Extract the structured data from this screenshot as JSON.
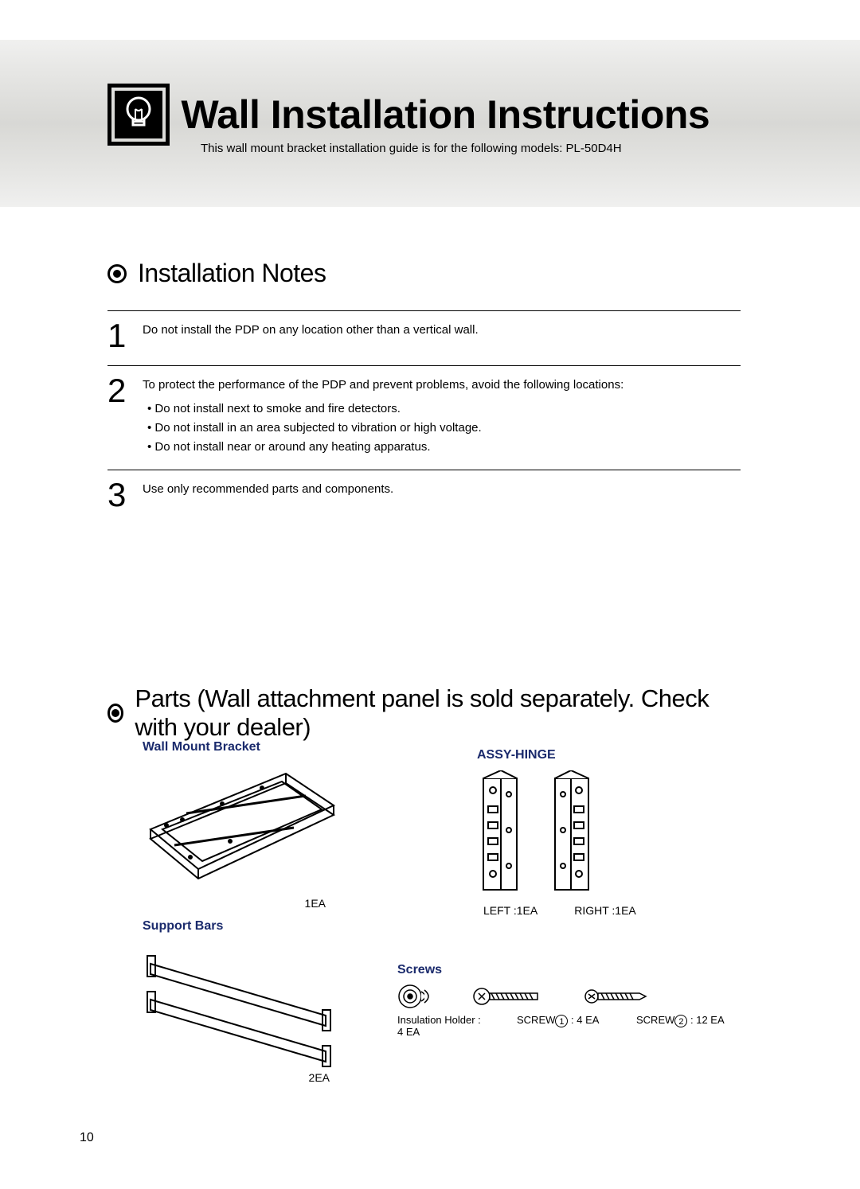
{
  "page_number": "10",
  "header": {
    "title": "Wall Installation Instructions",
    "subtitle": "This wall mount bracket installation guide is for the following models: PL-50D4H"
  },
  "sections": {
    "notes": {
      "title": "Installation Notes",
      "items": [
        {
          "num": "1",
          "text": "Do not install the PDP on any location other than a vertical wall.",
          "bullets": []
        },
        {
          "num": "2",
          "text": "To protect the performance of the PDP and prevent problems, avoid the following locations:",
          "bullets": [
            "Do not install next to smoke and fire detectors.",
            "Do not install in an area subjected to vibration or high voltage.",
            "Do not install near or around any heating apparatus."
          ]
        },
        {
          "num": "3",
          "text": "Use only recommended parts and components.",
          "bullets": []
        }
      ]
    },
    "parts": {
      "title": "Parts (Wall attachment panel is sold separately. Check with your dealer)",
      "wall_bracket": {
        "label": "Wall Mount Bracket",
        "qty": "1EA"
      },
      "support_bars": {
        "label": "Support Bars",
        "qty": "2EA"
      },
      "assy_hinge": {
        "label": "ASSY-HINGE",
        "left": "LEFT :1EA",
        "right": "RIGHT :1EA"
      },
      "screws": {
        "label": "Screws",
        "insulation": "Insulation Holder :",
        "insulation_qty": "4 EA",
        "screw1_prefix": "SCREW",
        "screw1_num": "1",
        "screw1_qty": " : 4 EA",
        "screw2_prefix": "SCREW",
        "screw2_num": "2",
        "screw2_qty": " : 12 EA"
      }
    }
  },
  "colors": {
    "label_blue": "#1a2a6c",
    "text": "#000000",
    "band_bg": "#e4e4e1"
  }
}
